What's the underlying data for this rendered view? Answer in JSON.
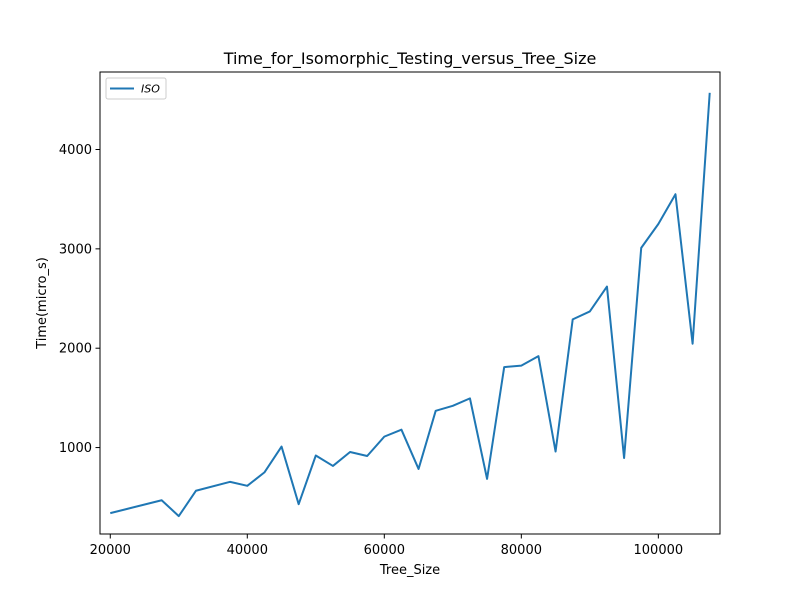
{
  "chart_data": {
    "type": "line",
    "title": "Time_for_Isomorphic_Testing_versus_Tree_Size",
    "xlabel": "Tree_Size",
    "ylabel": "Time(micro_s)",
    "xlim": [
      18500,
      109000
    ],
    "ylim": [
      130,
      4780
    ],
    "xticks": [
      20000,
      40000,
      60000,
      80000,
      100000
    ],
    "yticks": [
      1000,
      2000,
      3000,
      4000
    ],
    "xtick_labels": [
      "20000",
      "40000",
      "60000",
      "80000",
      "100000"
    ],
    "ytick_labels": [
      "1000",
      "2000",
      "3000",
      "4000"
    ],
    "grid": false,
    "legend_position": "upper-left",
    "series": [
      {
        "name": "ISO",
        "color": "#1f77b4",
        "x": [
          20000,
          27500,
          30000,
          32500,
          37500,
          40000,
          42500,
          45000,
          47500,
          50000,
          52500,
          55000,
          57500,
          60000,
          62500,
          65000,
          67500,
          70000,
          72500,
          75000,
          77500,
          80000,
          82500,
          85000,
          87500,
          90000,
          92500,
          95000,
          97500,
          100000,
          102500,
          105000,
          107500
        ],
        "y": [
          340,
          470,
          310,
          565,
          655,
          615,
          750,
          1010,
          430,
          920,
          815,
          955,
          915,
          1110,
          1180,
          785,
          1370,
          1420,
          1495,
          685,
          1810,
          1825,
          1920,
          960,
          2290,
          2370,
          2620,
          895,
          3010,
          3250,
          3550,
          2045,
          4570
        ]
      }
    ]
  }
}
